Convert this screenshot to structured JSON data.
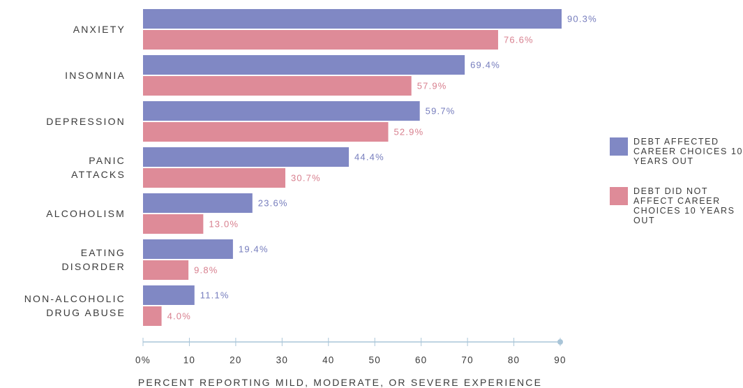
{
  "chart_data": {
    "type": "bar",
    "orientation": "horizontal",
    "categories": [
      "ANXIETY",
      "INSOMNIA",
      "DEPRESSION",
      "PANIC\nATTACKS",
      "ALCOHOLISM",
      "EATING\nDISORDER",
      "NON-ALCOHOLIC\nDRUG ABUSE"
    ],
    "series": [
      {
        "name": "DEBT AFFECTED CAREER CHOICES 10 YEARS OUT",
        "color": "#8088c4",
        "values": [
          90.3,
          69.4,
          59.7,
          44.4,
          23.6,
          19.4,
          11.1
        ],
        "value_labels": [
          "90.3%",
          "69.4%",
          "59.7%",
          "44.4%",
          "23.6%",
          "19.4%",
          "11.1%"
        ]
      },
      {
        "name": "DEBT DID NOT AFFECT CAREER CHOICES 10 YEARS OUT",
        "color": "#de8b98",
        "values": [
          76.6,
          57.9,
          52.9,
          30.7,
          13.0,
          9.8,
          4.0
        ],
        "value_labels": [
          "76.6%",
          "57.9%",
          "52.9%",
          "30.7%",
          "13.0%",
          "9.8%",
          "4.0%"
        ]
      }
    ],
    "xlabel": "PERCENT REPORTING MILD, MODERATE, OR SEVERE EXPERIENCE",
    "xlim": [
      0,
      90
    ],
    "xticks": [
      {
        "value": 0,
        "label": "0%"
      },
      10,
      20,
      30,
      40,
      50,
      60,
      70,
      80,
      90
    ],
    "legend": "right"
  }
}
